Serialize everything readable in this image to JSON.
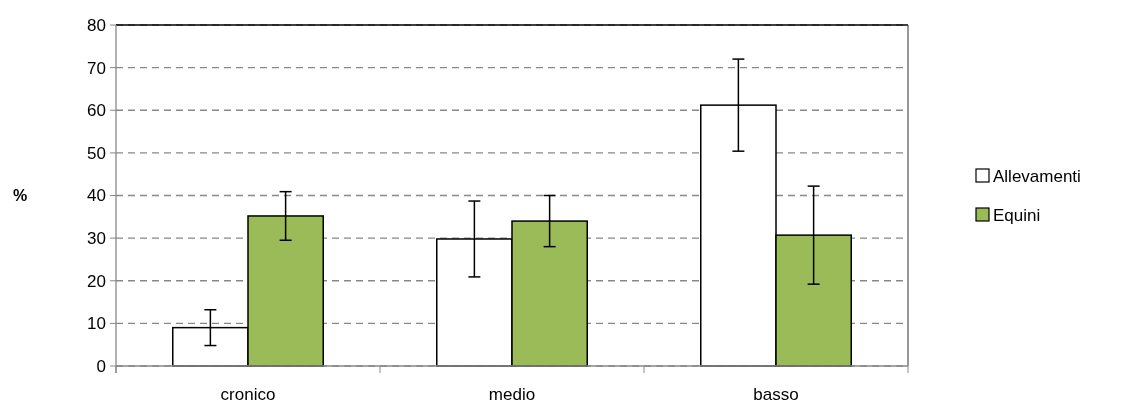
{
  "chart_data": {
    "type": "bar",
    "ylabel": "%",
    "categories": [
      "cronico",
      "medio",
      "basso"
    ],
    "series": [
      {
        "name": "Allevamenti",
        "color": "#ffffff",
        "values": [
          9,
          29.8,
          61.2
        ],
        "errors": [
          4.2,
          8.9,
          10.8
        ]
      },
      {
        "name": "Equini",
        "color": "#9bbb59",
        "values": [
          35.2,
          34,
          30.7
        ],
        "errors": [
          5.7,
          6,
          11.5
        ]
      }
    ],
    "ylim": [
      0,
      80
    ],
    "yticks": [
      0,
      10,
      20,
      30,
      40,
      50,
      60,
      70,
      80
    ],
    "grid": "y",
    "legend": "right"
  }
}
